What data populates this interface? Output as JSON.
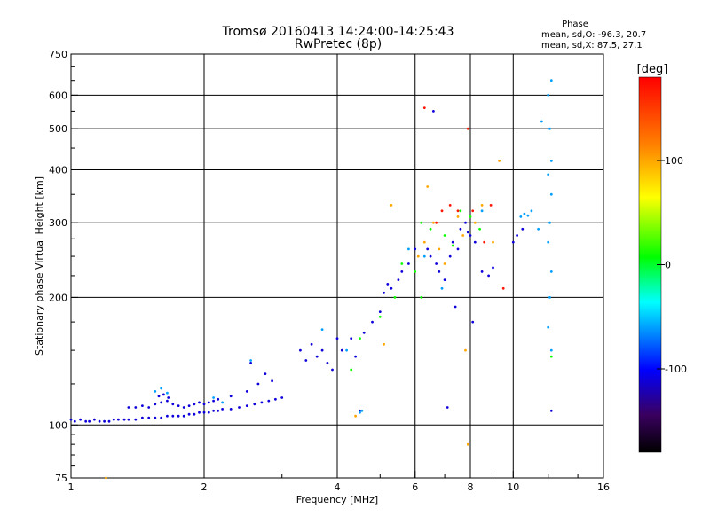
{
  "chart_data": {
    "type": "scatter",
    "title_line1": "Tromsø 20160413 14:24:00-14:25:43",
    "title_line2": "RwPretec (8p)",
    "phase_header": "Phase",
    "phase_stats_o": "mean, sd,O: -96.3, 20.7",
    "phase_stats_x": "mean, sd,X:  87.5, 27.1",
    "xlabel": "Frequency [MHz]",
    "ylabel": "Stationary phase Virtual Height [km]",
    "x_scale": "log",
    "y_scale": "log",
    "xlim": [
      1,
      16
    ],
    "ylim": [
      75,
      750
    ],
    "x_ticks": [
      1,
      2,
      4,
      6,
      8,
      10,
      16
    ],
    "x_tick_labels": [
      "1",
      "2",
      "4",
      "6",
      "8",
      "10",
      "16"
    ],
    "x_grid": [
      2,
      4,
      6,
      8,
      10
    ],
    "y_ticks": [
      75,
      100,
      200,
      300,
      400,
      500,
      600,
      750
    ],
    "y_tick_labels": [
      "75",
      "100",
      "200",
      "300",
      "400",
      "500",
      "600",
      "750"
    ],
    "y_grid": [
      100,
      200,
      300,
      400,
      500,
      600
    ],
    "grid": true,
    "colorbar": {
      "label": "[deg]",
      "range": [
        -180,
        180
      ],
      "ticks": [
        100,
        0,
        -100
      ],
      "tick_labels": [
        "100",
        "0",
        "-100"
      ]
    },
    "series": [
      {
        "color_phase": -110,
        "points": [
          [
            1.0,
            103
          ],
          [
            1.02,
            102
          ],
          [
            1.05,
            103
          ],
          [
            1.08,
            102
          ],
          [
            1.1,
            102
          ],
          [
            1.13,
            103
          ],
          [
            1.16,
            102
          ],
          [
            1.19,
            102
          ],
          [
            1.22,
            102
          ],
          [
            1.25,
            103
          ],
          [
            1.28,
            103
          ],
          [
            1.32,
            103
          ],
          [
            1.35,
            103
          ],
          [
            1.4,
            103
          ],
          [
            1.45,
            104
          ],
          [
            1.5,
            104
          ],
          [
            1.55,
            104
          ],
          [
            1.6,
            104
          ],
          [
            1.65,
            105
          ],
          [
            1.7,
            105
          ],
          [
            1.75,
            105
          ],
          [
            1.8,
            105
          ],
          [
            1.85,
            106
          ],
          [
            1.9,
            106
          ],
          [
            1.95,
            107
          ],
          [
            2.0,
            107
          ],
          [
            2.05,
            107
          ],
          [
            2.1,
            108
          ],
          [
            2.15,
            108
          ],
          [
            2.2,
            109
          ],
          [
            2.3,
            109
          ],
          [
            2.4,
            110
          ],
          [
            2.5,
            111
          ],
          [
            2.6,
            112
          ],
          [
            2.7,
            113
          ],
          [
            2.8,
            114
          ],
          [
            2.9,
            115
          ],
          [
            3.0,
            116
          ],
          [
            1.35,
            110
          ],
          [
            1.4,
            110
          ],
          [
            1.45,
            111
          ],
          [
            1.5,
            110
          ],
          [
            1.55,
            112
          ],
          [
            1.6,
            113
          ],
          [
            1.65,
            114
          ],
          [
            1.7,
            112
          ],
          [
            1.75,
            111
          ],
          [
            1.8,
            110
          ],
          [
            1.85,
            111
          ],
          [
            1.9,
            112
          ],
          [
            1.95,
            113
          ],
          [
            2.0,
            112
          ],
          [
            2.05,
            113
          ],
          [
            2.1,
            114
          ],
          [
            1.58,
            117
          ],
          [
            1.62,
            118
          ],
          [
            1.66,
            116
          ],
          [
            2.15,
            115
          ],
          [
            2.3,
            117
          ],
          [
            2.5,
            120
          ],
          [
            2.55,
            140
          ],
          [
            2.65,
            125
          ],
          [
            2.75,
            132
          ],
          [
            2.85,
            127
          ],
          [
            3.3,
            150
          ],
          [
            3.4,
            142
          ],
          [
            3.5,
            155
          ],
          [
            3.6,
            145
          ],
          [
            3.7,
            150
          ],
          [
            3.8,
            140
          ],
          [
            3.9,
            135
          ],
          [
            4.0,
            160
          ],
          [
            4.1,
            150
          ],
          [
            4.3,
            160
          ],
          [
            4.4,
            145
          ],
          [
            4.5,
            108
          ],
          [
            4.6,
            165
          ],
          [
            4.8,
            175
          ],
          [
            5.0,
            185
          ],
          [
            5.1,
            205
          ],
          [
            5.2,
            215
          ],
          [
            5.3,
            210
          ],
          [
            5.5,
            220
          ],
          [
            5.6,
            230
          ],
          [
            5.8,
            240
          ],
          [
            6.0,
            260
          ],
          [
            6.4,
            260
          ],
          [
            6.5,
            250
          ],
          [
            6.7,
            240
          ],
          [
            6.8,
            230
          ],
          [
            7.0,
            220
          ],
          [
            7.2,
            250
          ],
          [
            7.3,
            270
          ],
          [
            7.5,
            260
          ],
          [
            7.6,
            290
          ],
          [
            7.8,
            300
          ],
          [
            7.9,
            285
          ],
          [
            8.0,
            280
          ],
          [
            8.2,
            270
          ],
          [
            8.5,
            230
          ],
          [
            8.8,
            225
          ],
          [
            9.0,
            235
          ],
          [
            6.6,
            550
          ],
          [
            7.1,
            110
          ],
          [
            7.4,
            190
          ],
          [
            8.1,
            175
          ],
          [
            10.0,
            270
          ],
          [
            10.2,
            280
          ],
          [
            10.5,
            290
          ],
          [
            12.2,
            108
          ]
        ]
      },
      {
        "color_phase": -60,
        "points": [
          [
            1.55,
            120
          ],
          [
            1.6,
            122
          ],
          [
            1.65,
            119
          ],
          [
            2.1,
            116
          ],
          [
            2.2,
            113
          ],
          [
            2.55,
            142
          ],
          [
            3.7,
            168
          ],
          [
            4.2,
            150
          ],
          [
            4.5,
            107
          ],
          [
            4.55,
            108
          ],
          [
            5.8,
            260
          ],
          [
            6.3,
            250
          ],
          [
            6.9,
            210
          ],
          [
            8.5,
            320
          ],
          [
            10.4,
            310
          ],
          [
            10.6,
            315
          ],
          [
            10.8,
            312
          ],
          [
            11.0,
            320
          ],
          [
            12.0,
            600
          ],
          [
            12.1,
            500
          ],
          [
            12.2,
            420
          ],
          [
            12.0,
            390
          ],
          [
            12.2,
            350
          ],
          [
            12.1,
            300
          ],
          [
            12.0,
            270
          ],
          [
            12.2,
            230
          ],
          [
            12.1,
            200
          ],
          [
            12.0,
            170
          ],
          [
            12.2,
            150
          ],
          [
            11.4,
            290
          ],
          [
            11.6,
            520
          ],
          [
            12.2,
            650
          ]
        ]
      },
      {
        "color_phase": 10,
        "points": [
          [
            4.5,
            160
          ],
          [
            5.4,
            200
          ],
          [
            5.6,
            240
          ],
          [
            6.0,
            230
          ],
          [
            6.2,
            300
          ],
          [
            6.5,
            290
          ],
          [
            7.0,
            280
          ],
          [
            7.3,
            265
          ],
          [
            7.6,
            320
          ],
          [
            8.0,
            310
          ],
          [
            8.4,
            290
          ],
          [
            12.2,
            145
          ],
          [
            4.3,
            135
          ],
          [
            5.0,
            180
          ],
          [
            6.2,
            200
          ]
        ]
      },
      {
        "color_phase": 100,
        "points": [
          [
            1.2,
            75
          ],
          [
            4.4,
            105
          ],
          [
            5.3,
            330
          ],
          [
            6.1,
            250
          ],
          [
            6.3,
            270
          ],
          [
            6.6,
            300
          ],
          [
            6.8,
            260
          ],
          [
            7.0,
            240
          ],
          [
            7.5,
            310
          ],
          [
            7.7,
            280
          ],
          [
            8.2,
            300
          ],
          [
            8.5,
            330
          ],
          [
            9.0,
            270
          ],
          [
            9.3,
            420
          ],
          [
            6.4,
            365
          ],
          [
            7.9,
            90
          ],
          [
            5.1,
            155
          ],
          [
            7.8,
            150
          ]
        ]
      },
      {
        "color_phase": 170,
        "points": [
          [
            6.3,
            560
          ],
          [
            6.7,
            300
          ],
          [
            7.2,
            330
          ],
          [
            7.5,
            320
          ],
          [
            8.1,
            320
          ],
          [
            8.9,
            330
          ],
          [
            9.5,
            210
          ],
          [
            7.9,
            500
          ],
          [
            6.9,
            320
          ],
          [
            8.6,
            270
          ]
        ]
      }
    ]
  }
}
